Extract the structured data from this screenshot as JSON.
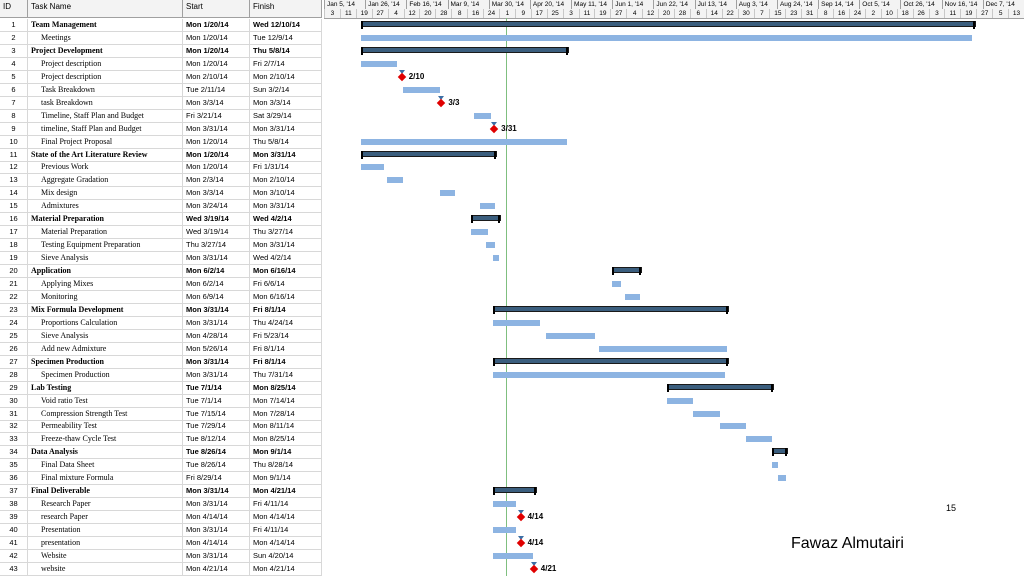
{
  "headers": {
    "id": "ID",
    "name": "Task Name",
    "start": "Start",
    "finish": "Finish"
  },
  "timeline_months": [
    "Jan 5, '14",
    "Jan 26, '14",
    "Feb 16, '14",
    "Mar 9, '14",
    "Mar 30, '14",
    "Apr 20, '14",
    "May 11, '14",
    "Jun 1, '14",
    "Jun 22, '14",
    "Jul 13, '14",
    "Aug 3, '14",
    "Aug 24, '14",
    "Sep 14, '14",
    "Oct 5, '14",
    "Oct 26, '14",
    "Nov 16, '14",
    "Dec 7, '14"
  ],
  "timeline_days": [
    "3",
    "11",
    "19",
    "27",
    "4",
    "12",
    "20",
    "28",
    "8",
    "16",
    "24",
    "1",
    "9",
    "17",
    "25",
    "3",
    "11",
    "19",
    "27",
    "4",
    "12",
    "20",
    "28",
    "6",
    "14",
    "22",
    "30",
    "7",
    "15",
    "23",
    "31",
    "8",
    "16",
    "24",
    "2",
    "10",
    "18",
    "26",
    "3",
    "11",
    "19",
    "27",
    "5",
    "13"
  ],
  "tasks": [
    {
      "id": "1",
      "name": "Team Management",
      "start": "Mon 1/20/14",
      "finish": "Wed 12/10/14",
      "summary": true
    },
    {
      "id": "2",
      "name": "Meetings",
      "start": "Mon 1/20/14",
      "finish": "Tue 12/9/14"
    },
    {
      "id": "3",
      "name": "Project Development",
      "start": "Mon 1/20/14",
      "finish": "Thu 5/8/14",
      "summary": true
    },
    {
      "id": "4",
      "name": "Project description",
      "start": "Mon 1/20/14",
      "finish": "Fri 2/7/14"
    },
    {
      "id": "5",
      "name": "Project description",
      "start": "Mon 2/10/14",
      "finish": "Mon 2/10/14"
    },
    {
      "id": "6",
      "name": "Task Breakdown",
      "start": "Tue 2/11/14",
      "finish": "Sun 3/2/14"
    },
    {
      "id": "7",
      "name": "task Breakdown",
      "start": "Mon 3/3/14",
      "finish": "Mon 3/3/14"
    },
    {
      "id": "8",
      "name": "Timeline, Staff Plan and Budget",
      "start": "Fri 3/21/14",
      "finish": "Sat 3/29/14"
    },
    {
      "id": "9",
      "name": "timeline, Staff Plan and Budget",
      "start": "Mon 3/31/14",
      "finish": "Mon 3/31/14"
    },
    {
      "id": "10",
      "name": "Final Project Proposal",
      "start": "Mon 1/20/14",
      "finish": "Thu 5/8/14"
    },
    {
      "id": "11",
      "name": "State of the Art Literature Review",
      "start": "Mon 1/20/14",
      "finish": "Mon 3/31/14",
      "summary": true
    },
    {
      "id": "12",
      "name": "Previous Work",
      "start": "Mon 1/20/14",
      "finish": "Fri 1/31/14"
    },
    {
      "id": "13",
      "name": "Aggregate Gradation",
      "start": "Mon 2/3/14",
      "finish": "Mon 2/10/14"
    },
    {
      "id": "14",
      "name": "Mix design",
      "start": "Mon 3/3/14",
      "finish": "Mon 3/10/14"
    },
    {
      "id": "15",
      "name": "Admixtures",
      "start": "Mon 3/24/14",
      "finish": "Mon 3/31/14"
    },
    {
      "id": "16",
      "name": "Material Preparation",
      "start": "Wed 3/19/14",
      "finish": "Wed 4/2/14",
      "summary": true
    },
    {
      "id": "17",
      "name": "Material Preparation",
      "start": "Wed 3/19/14",
      "finish": "Thu 3/27/14"
    },
    {
      "id": "18",
      "name": "Testing Equipment Preparation",
      "start": "Thu 3/27/14",
      "finish": "Mon 3/31/14"
    },
    {
      "id": "19",
      "name": "Sieve Analysis",
      "start": "Mon 3/31/14",
      "finish": "Wed 4/2/14"
    },
    {
      "id": "20",
      "name": "Application",
      "start": "Mon 6/2/14",
      "finish": "Mon 6/16/14",
      "summary": true
    },
    {
      "id": "21",
      "name": "Applying Mixes",
      "start": "Mon 6/2/14",
      "finish": "Fri 6/6/14"
    },
    {
      "id": "22",
      "name": "Monitoring",
      "start": "Mon 6/9/14",
      "finish": "Mon 6/16/14"
    },
    {
      "id": "23",
      "name": "Mix Formula Development",
      "start": "Mon 3/31/14",
      "finish": "Fri 8/1/14",
      "summary": true
    },
    {
      "id": "24",
      "name": "Proportions Calculation",
      "start": "Mon 3/31/14",
      "finish": "Thu 4/24/14"
    },
    {
      "id": "25",
      "name": "Sieve Analysis",
      "start": "Mon 4/28/14",
      "finish": "Fri 5/23/14"
    },
    {
      "id": "26",
      "name": "Add new Admixture",
      "start": "Mon 5/26/14",
      "finish": "Fri 8/1/14"
    },
    {
      "id": "27",
      "name": "Specimen Production",
      "start": "Mon 3/31/14",
      "finish": "Fri 8/1/14",
      "summary": true
    },
    {
      "id": "28",
      "name": "Specimen Production",
      "start": "Mon 3/31/14",
      "finish": "Thu 7/31/14"
    },
    {
      "id": "29",
      "name": "Lab Testing",
      "start": "Tue 7/1/14",
      "finish": "Mon 8/25/14",
      "summary": true
    },
    {
      "id": "30",
      "name": "Void ratio Test",
      "start": "Tue 7/1/14",
      "finish": "Mon 7/14/14"
    },
    {
      "id": "31",
      "name": "Compression Strength Test",
      "start": "Tue 7/15/14",
      "finish": "Mon 7/28/14"
    },
    {
      "id": "32",
      "name": "Permeability Test",
      "start": "Tue 7/29/14",
      "finish": "Mon 8/11/14"
    },
    {
      "id": "33",
      "name": "Freeze-thaw Cycle Test",
      "start": "Tue 8/12/14",
      "finish": "Mon 8/25/14"
    },
    {
      "id": "34",
      "name": "Data Analysis",
      "start": "Tue 8/26/14",
      "finish": "Mon 9/1/14",
      "summary": true
    },
    {
      "id": "35",
      "name": "Final Data Sheet",
      "start": "Tue 8/26/14",
      "finish": "Thu 8/28/14"
    },
    {
      "id": "36",
      "name": "Final mixture Formula",
      "start": "Fri 8/29/14",
      "finish": "Mon 9/1/14"
    },
    {
      "id": "37",
      "name": "Final Deliverable",
      "start": "Mon 3/31/14",
      "finish": "Mon 4/21/14",
      "summary": true
    },
    {
      "id": "38",
      "name": "Research Paper",
      "start": "Mon 3/31/14",
      "finish": "Fri 4/11/14"
    },
    {
      "id": "39",
      "name": "research Paper",
      "start": "Mon 4/14/14",
      "finish": "Mon 4/14/14"
    },
    {
      "id": "40",
      "name": "Presentation",
      "start": "Mon 3/31/14",
      "finish": "Fri 4/11/14"
    },
    {
      "id": "41",
      "name": "presentation",
      "start": "Mon 4/14/14",
      "finish": "Mon 4/14/14"
    },
    {
      "id": "42",
      "name": "Website",
      "start": "Mon 3/31/14",
      "finish": "Sun 4/20/14"
    },
    {
      "id": "43",
      "name": "website",
      "start": "Mon 4/21/14",
      "finish": "Mon 4/21/14"
    }
  ],
  "gantt": [
    {
      "row": 1,
      "type": "summary",
      "from": "2014-01-20",
      "to": "2014-12-10"
    },
    {
      "row": 2,
      "type": "task",
      "from": "2014-01-20",
      "to": "2014-12-09"
    },
    {
      "row": 3,
      "type": "summary",
      "from": "2014-01-20",
      "to": "2014-05-08"
    },
    {
      "row": 4,
      "type": "task",
      "from": "2014-01-20",
      "to": "2014-02-07"
    },
    {
      "row": 5,
      "type": "milestone",
      "from": "2014-02-10",
      "label": "2/10"
    },
    {
      "row": 6,
      "type": "task",
      "from": "2014-02-11",
      "to": "2014-03-02"
    },
    {
      "row": 7,
      "type": "milestone",
      "from": "2014-03-03",
      "label": "3/3"
    },
    {
      "row": 8,
      "type": "task",
      "from": "2014-03-21",
      "to": "2014-03-29"
    },
    {
      "row": 9,
      "type": "milestone",
      "from": "2014-03-31",
      "label": "3/31"
    },
    {
      "row": 10,
      "type": "task",
      "from": "2014-01-20",
      "to": "2014-05-08"
    },
    {
      "row": 11,
      "type": "summary",
      "from": "2014-01-20",
      "to": "2014-03-31"
    },
    {
      "row": 12,
      "type": "task",
      "from": "2014-01-20",
      "to": "2014-01-31"
    },
    {
      "row": 13,
      "type": "task",
      "from": "2014-02-03",
      "to": "2014-02-10"
    },
    {
      "row": 14,
      "type": "task",
      "from": "2014-03-03",
      "to": "2014-03-10"
    },
    {
      "row": 15,
      "type": "task",
      "from": "2014-03-24",
      "to": "2014-03-31"
    },
    {
      "row": 16,
      "type": "summary",
      "from": "2014-03-19",
      "to": "2014-04-02"
    },
    {
      "row": 17,
      "type": "task",
      "from": "2014-03-19",
      "to": "2014-03-27"
    },
    {
      "row": 18,
      "type": "task",
      "from": "2014-03-27",
      "to": "2014-03-31"
    },
    {
      "row": 19,
      "type": "task",
      "from": "2014-03-31",
      "to": "2014-04-02"
    },
    {
      "row": 20,
      "type": "summary",
      "from": "2014-06-02",
      "to": "2014-06-16"
    },
    {
      "row": 21,
      "type": "task",
      "from": "2014-06-02",
      "to": "2014-06-06"
    },
    {
      "row": 22,
      "type": "task",
      "from": "2014-06-09",
      "to": "2014-06-16"
    },
    {
      "row": 23,
      "type": "summary",
      "from": "2014-03-31",
      "to": "2014-08-01"
    },
    {
      "row": 24,
      "type": "task",
      "from": "2014-03-31",
      "to": "2014-04-24"
    },
    {
      "row": 25,
      "type": "task",
      "from": "2014-04-28",
      "to": "2014-05-23"
    },
    {
      "row": 26,
      "type": "task",
      "from": "2014-05-26",
      "to": "2014-08-01"
    },
    {
      "row": 27,
      "type": "summary",
      "from": "2014-03-31",
      "to": "2014-08-01"
    },
    {
      "row": 28,
      "type": "task",
      "from": "2014-03-31",
      "to": "2014-07-31"
    },
    {
      "row": 29,
      "type": "summary",
      "from": "2014-07-01",
      "to": "2014-08-25"
    },
    {
      "row": 30,
      "type": "task",
      "from": "2014-07-01",
      "to": "2014-07-14"
    },
    {
      "row": 31,
      "type": "task",
      "from": "2014-07-15",
      "to": "2014-07-28"
    },
    {
      "row": 32,
      "type": "task",
      "from": "2014-07-29",
      "to": "2014-08-11"
    },
    {
      "row": 33,
      "type": "task",
      "from": "2014-08-12",
      "to": "2014-08-25"
    },
    {
      "row": 34,
      "type": "summary",
      "from": "2014-08-26",
      "to": "2014-09-01"
    },
    {
      "row": 35,
      "type": "task",
      "from": "2014-08-26",
      "to": "2014-08-28"
    },
    {
      "row": 36,
      "type": "task",
      "from": "2014-08-29",
      "to": "2014-09-01"
    },
    {
      "row": 37,
      "type": "summary",
      "from": "2014-03-31",
      "to": "2014-04-21"
    },
    {
      "row": 38,
      "type": "task",
      "from": "2014-03-31",
      "to": "2014-04-11"
    },
    {
      "row": 39,
      "type": "milestone",
      "from": "2014-04-14",
      "label": "4/14"
    },
    {
      "row": 40,
      "type": "task",
      "from": "2014-03-31",
      "to": "2014-04-11"
    },
    {
      "row": 41,
      "type": "milestone",
      "from": "2014-04-14",
      "label": "4/14"
    },
    {
      "row": 42,
      "type": "task",
      "from": "2014-03-31",
      "to": "2014-04-20"
    },
    {
      "row": 43,
      "type": "milestone",
      "from": "2014-04-21",
      "label": "4/21"
    }
  ],
  "today": "2014-04-07",
  "colors": {
    "task_bar": "#8db4e2",
    "summary_bar": "#3b5e7e",
    "milestone": "#e00000",
    "today_line": "#7fbf7f"
  },
  "footer": {
    "page": "15",
    "author": "Fawaz Almutairi"
  }
}
